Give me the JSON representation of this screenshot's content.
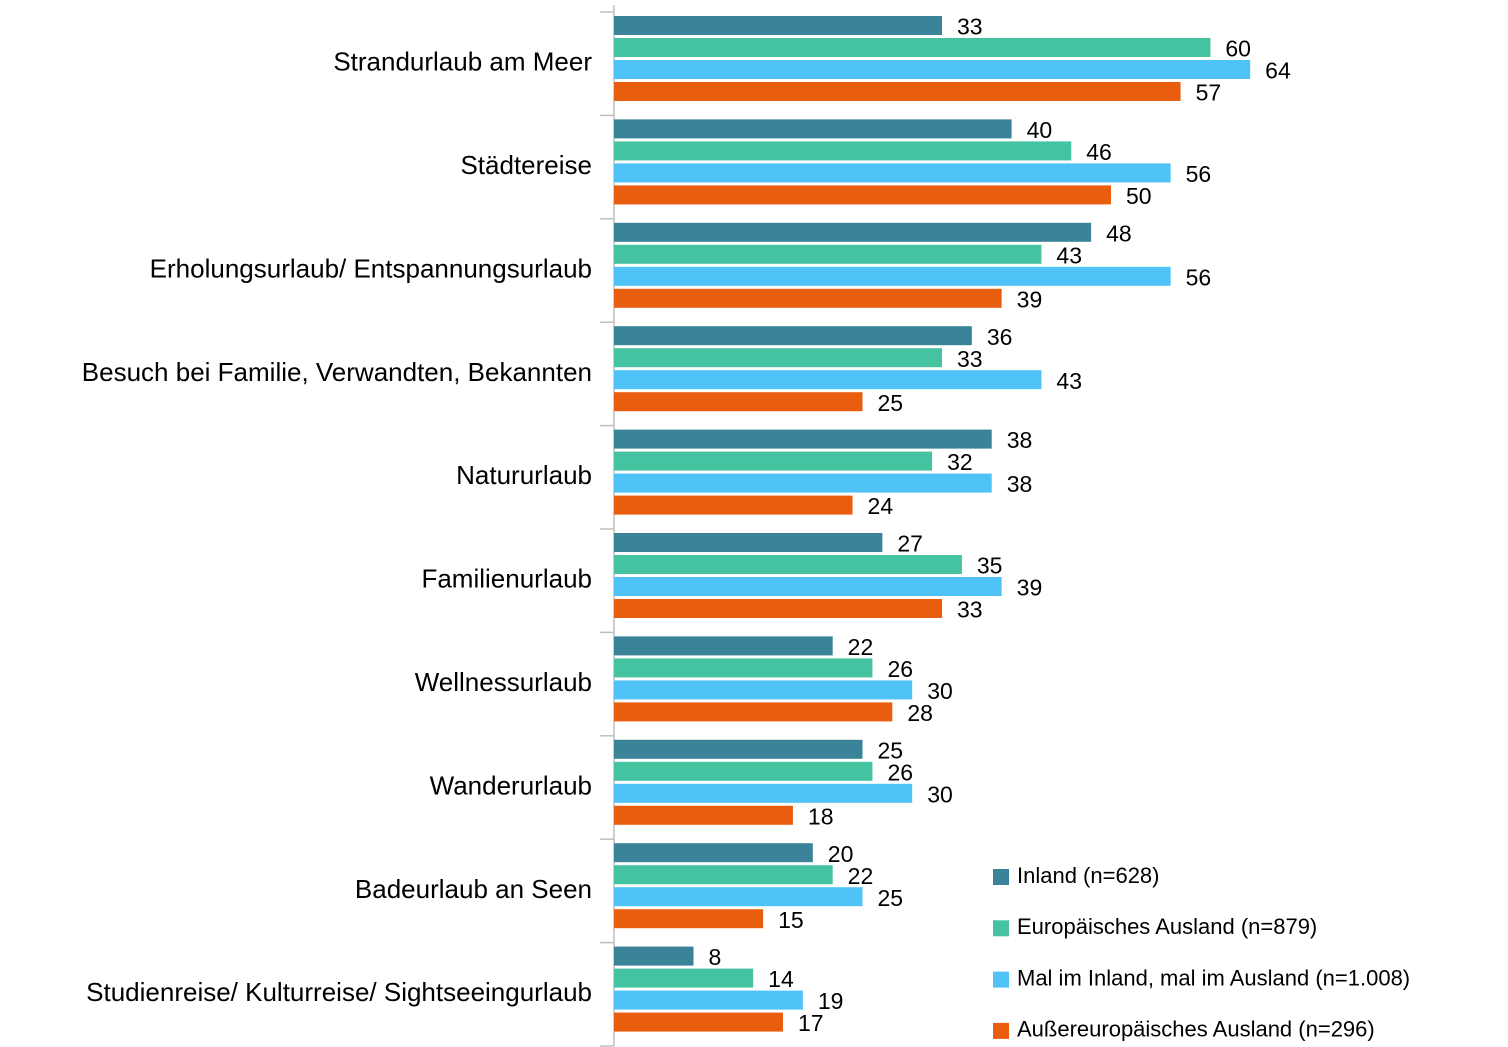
{
  "chart_data": {
    "type": "bar",
    "orientation": "horizontal",
    "categories": [
      "Strandurlaub am Meer",
      "Städtereise",
      "Erholungsurlaub/ Entspannungsurlaub",
      "Besuch bei Familie, Verwandten, Bekannten",
      "Natururlaub",
      "Familienurlaub",
      "Wellnessurlaub",
      "Wanderurlaub",
      "Badeurlaub an Seen",
      "Studienreise/ Kulturreise/ Sightseeingurlaub"
    ],
    "series": [
      {
        "name": "Inland (n=628)",
        "color": "#3a8399",
        "values": [
          33,
          40,
          48,
          36,
          38,
          27,
          22,
          25,
          20,
          8
        ]
      },
      {
        "name": "Europäisches Ausland (n=879)",
        "color": "#45c3a0",
        "values": [
          60,
          46,
          43,
          33,
          32,
          35,
          26,
          26,
          22,
          14
        ]
      },
      {
        "name": "Mal im Inland, mal im Ausland (n=1.008)",
        "color": "#4fc3f7",
        "values": [
          64,
          56,
          56,
          43,
          38,
          39,
          30,
          30,
          25,
          19
        ]
      },
      {
        "name": "Außereuropäisches Ausland (n=296)",
        "color": "#e95d0f",
        "values": [
          57,
          50,
          39,
          25,
          24,
          33,
          28,
          18,
          15,
          17
        ]
      }
    ],
    "legend": "bottom-right"
  }
}
